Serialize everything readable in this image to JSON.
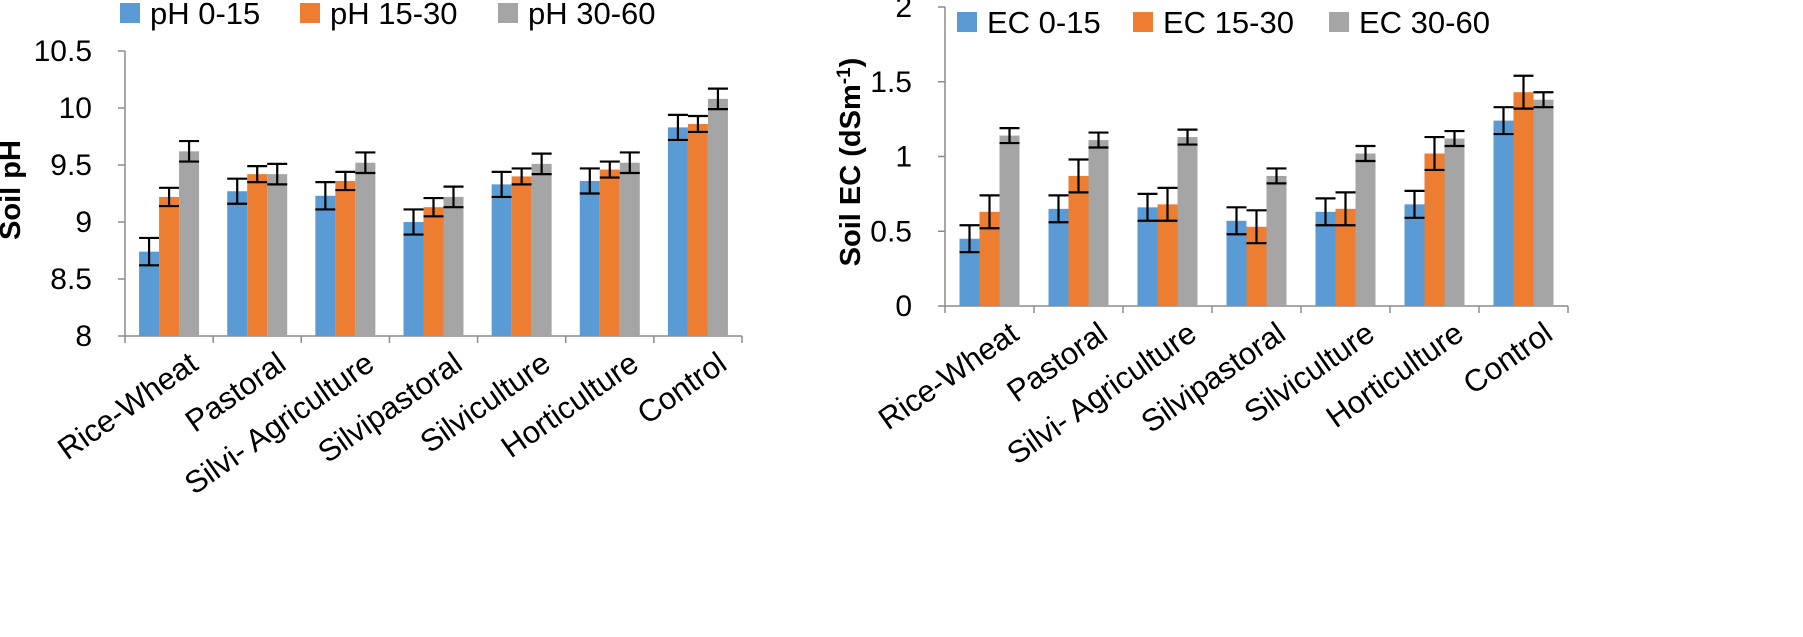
{
  "chart_data": [
    {
      "type": "bar",
      "title": "",
      "xlabel": "",
      "ylabel": "Soil pH",
      "ylim": [
        8,
        10.5
      ],
      "yticks": [
        "8",
        "8.5",
        "9",
        "9.5",
        "10",
        "10.5"
      ],
      "grid": false,
      "legend_position": "top",
      "categories": [
        "Rice-Wheat",
        "Pastoral",
        "Silvi- Agriculture",
        "Silvipastoral",
        "Silviculture",
        "Horticulture",
        "Control"
      ],
      "series": [
        {
          "name": "pH 0-15",
          "color": "#5b9bd5",
          "values": [
            8.74,
            9.27,
            9.23,
            9.0,
            9.33,
            9.36,
            9.83
          ],
          "errors": [
            0.12,
            0.11,
            0.12,
            0.11,
            0.11,
            0.11,
            0.11
          ]
        },
        {
          "name": "pH 15-30",
          "color": "#ed7d31",
          "values": [
            9.22,
            9.42,
            9.36,
            9.13,
            9.4,
            9.46,
            9.86
          ],
          "errors": [
            0.08,
            0.07,
            0.08,
            0.08,
            0.07,
            0.07,
            0.07
          ]
        },
        {
          "name": "pH 30-60",
          "color": "#a5a5a5",
          "values": [
            9.62,
            9.42,
            9.52,
            9.22,
            9.51,
            9.52,
            10.08
          ],
          "errors": [
            0.09,
            0.09,
            0.09,
            0.09,
            0.09,
            0.09,
            0.09
          ]
        }
      ]
    },
    {
      "type": "bar",
      "title": "",
      "xlabel": "",
      "ylabel": "Soil EC (dSm",
      "ylabel_superscript": "-1",
      "ylabel_suffix": ")",
      "ylim": [
        0,
        2
      ],
      "yticks": [
        "0",
        "0.5",
        "1",
        "1.5",
        "2"
      ],
      "grid": false,
      "legend_position": "top",
      "categories": [
        "Rice-Wheat",
        "Pastoral",
        "Silvi- Agriculture",
        "Silvipastoral",
        "Silviculture",
        "Horticulture",
        "Control"
      ],
      "series": [
        {
          "name": "EC 0-15",
          "color": "#5b9bd5",
          "values": [
            0.45,
            0.65,
            0.66,
            0.57,
            0.63,
            0.68,
            1.24
          ],
          "errors": [
            0.09,
            0.09,
            0.09,
            0.09,
            0.09,
            0.09,
            0.09
          ]
        },
        {
          "name": "EC 15-30",
          "color": "#ed7d31",
          "values": [
            0.63,
            0.87,
            0.68,
            0.53,
            0.65,
            1.02,
            1.43
          ],
          "errors": [
            0.11,
            0.11,
            0.11,
            0.11,
            0.11,
            0.11,
            0.11
          ]
        },
        {
          "name": "EC 30-60",
          "color": "#a5a5a5",
          "values": [
            1.14,
            1.11,
            1.13,
            0.87,
            1.02,
            1.12,
            1.38
          ],
          "errors": [
            0.05,
            0.05,
            0.05,
            0.05,
            0.05,
            0.05,
            0.05
          ]
        }
      ]
    }
  ]
}
